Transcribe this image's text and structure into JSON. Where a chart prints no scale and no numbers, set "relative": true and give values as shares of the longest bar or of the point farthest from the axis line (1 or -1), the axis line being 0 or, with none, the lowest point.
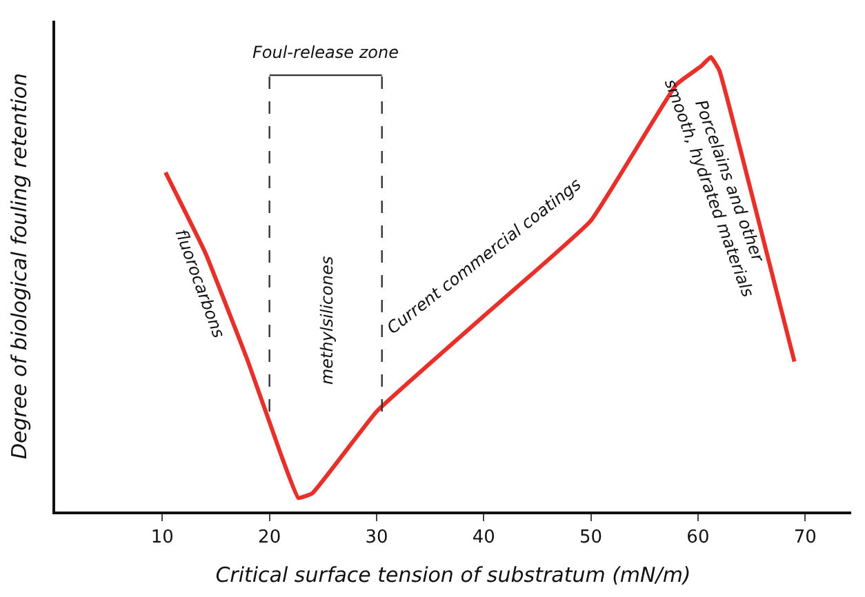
{
  "chart_data": {
    "type": "line",
    "relative": true,
    "xlabel": "Critical surface tension of substratum (mN/m)",
    "ylabel": "Degree of biological fouling retention",
    "x": [
      10.3,
      14,
      18,
      21,
      22.7,
      24,
      30,
      40,
      50,
      58,
      60.3,
      61.2,
      62,
      65,
      69.0
    ],
    "series": [
      {
        "color": "#e8302a",
        "values": [
          0.746,
          0.57,
          0.33,
          0.13,
          0.03,
          0.04,
          0.22,
          0.43,
          0.64,
          0.94,
          0.98,
          1.0,
          0.97,
          0.7,
          0.33
        ]
      }
    ],
    "xlim": [
      0,
      74.3
    ],
    "xticks": [
      10,
      20,
      30,
      40,
      50,
      60,
      70
    ],
    "marker": "none",
    "line_style": "solid",
    "tick_labels": "x",
    "ref_lines": [
      {
        "axis": "x",
        "value": 20,
        "line_style": "dashed",
        "color": "#333333"
      },
      {
        "axis": "x",
        "value": 30.5,
        "line_style": "dashed",
        "color": "#333333"
      }
    ],
    "annotations": [
      "Foul-release zone",
      "fluorocarbons",
      "methylsilicones",
      "Current commercial coatings",
      "Porcelains and other smooth, hydrated materials"
    ]
  }
}
